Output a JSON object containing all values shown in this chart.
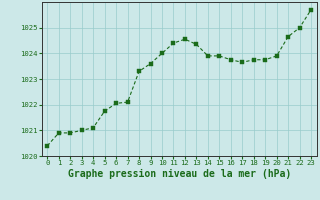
{
  "x": [
    0,
    1,
    2,
    3,
    4,
    5,
    6,
    7,
    8,
    9,
    10,
    11,
    12,
    13,
    14,
    15,
    16,
    17,
    18,
    19,
    20,
    21,
    22,
    23
  ],
  "y": [
    1020.4,
    1020.9,
    1020.9,
    1021.0,
    1021.1,
    1021.75,
    1022.05,
    1022.1,
    1023.3,
    1023.6,
    1024.0,
    1024.4,
    1024.55,
    1024.35,
    1023.9,
    1023.9,
    1023.75,
    1023.65,
    1023.75,
    1023.75,
    1023.9,
    1024.65,
    1025.0,
    1025.7
  ],
  "line_color": "#1a6b1a",
  "marker_color": "#1a6b1a",
  "bg_color": "#cce8e8",
  "grid_color": "#99cccc",
  "xlabel": "Graphe pression niveau de la mer (hPa)",
  "xlabel_color": "#1a6b1a",
  "ylim": [
    1020,
    1026
  ],
  "xlim_min": -0.5,
  "xlim_max": 23.5,
  "yticks": [
    1020,
    1021,
    1022,
    1023,
    1024,
    1025
  ],
  "xticks": [
    0,
    1,
    2,
    3,
    4,
    5,
    6,
    7,
    8,
    9,
    10,
    11,
    12,
    13,
    14,
    15,
    16,
    17,
    18,
    19,
    20,
    21,
    22,
    23
  ],
  "xtick_labels": [
    "0",
    "1",
    "2",
    "3",
    "4",
    "5",
    "6",
    "7",
    "8",
    "9",
    "10",
    "11",
    "12",
    "13",
    "14",
    "15",
    "16",
    "17",
    "18",
    "19",
    "20",
    "21",
    "22",
    "23"
  ],
  "tick_color": "#1a6b1a",
  "tick_fontsize": 5.2,
  "xlabel_fontsize": 7.0,
  "border_color": "#555555",
  "line_width": 0.8,
  "marker_size": 2.2
}
